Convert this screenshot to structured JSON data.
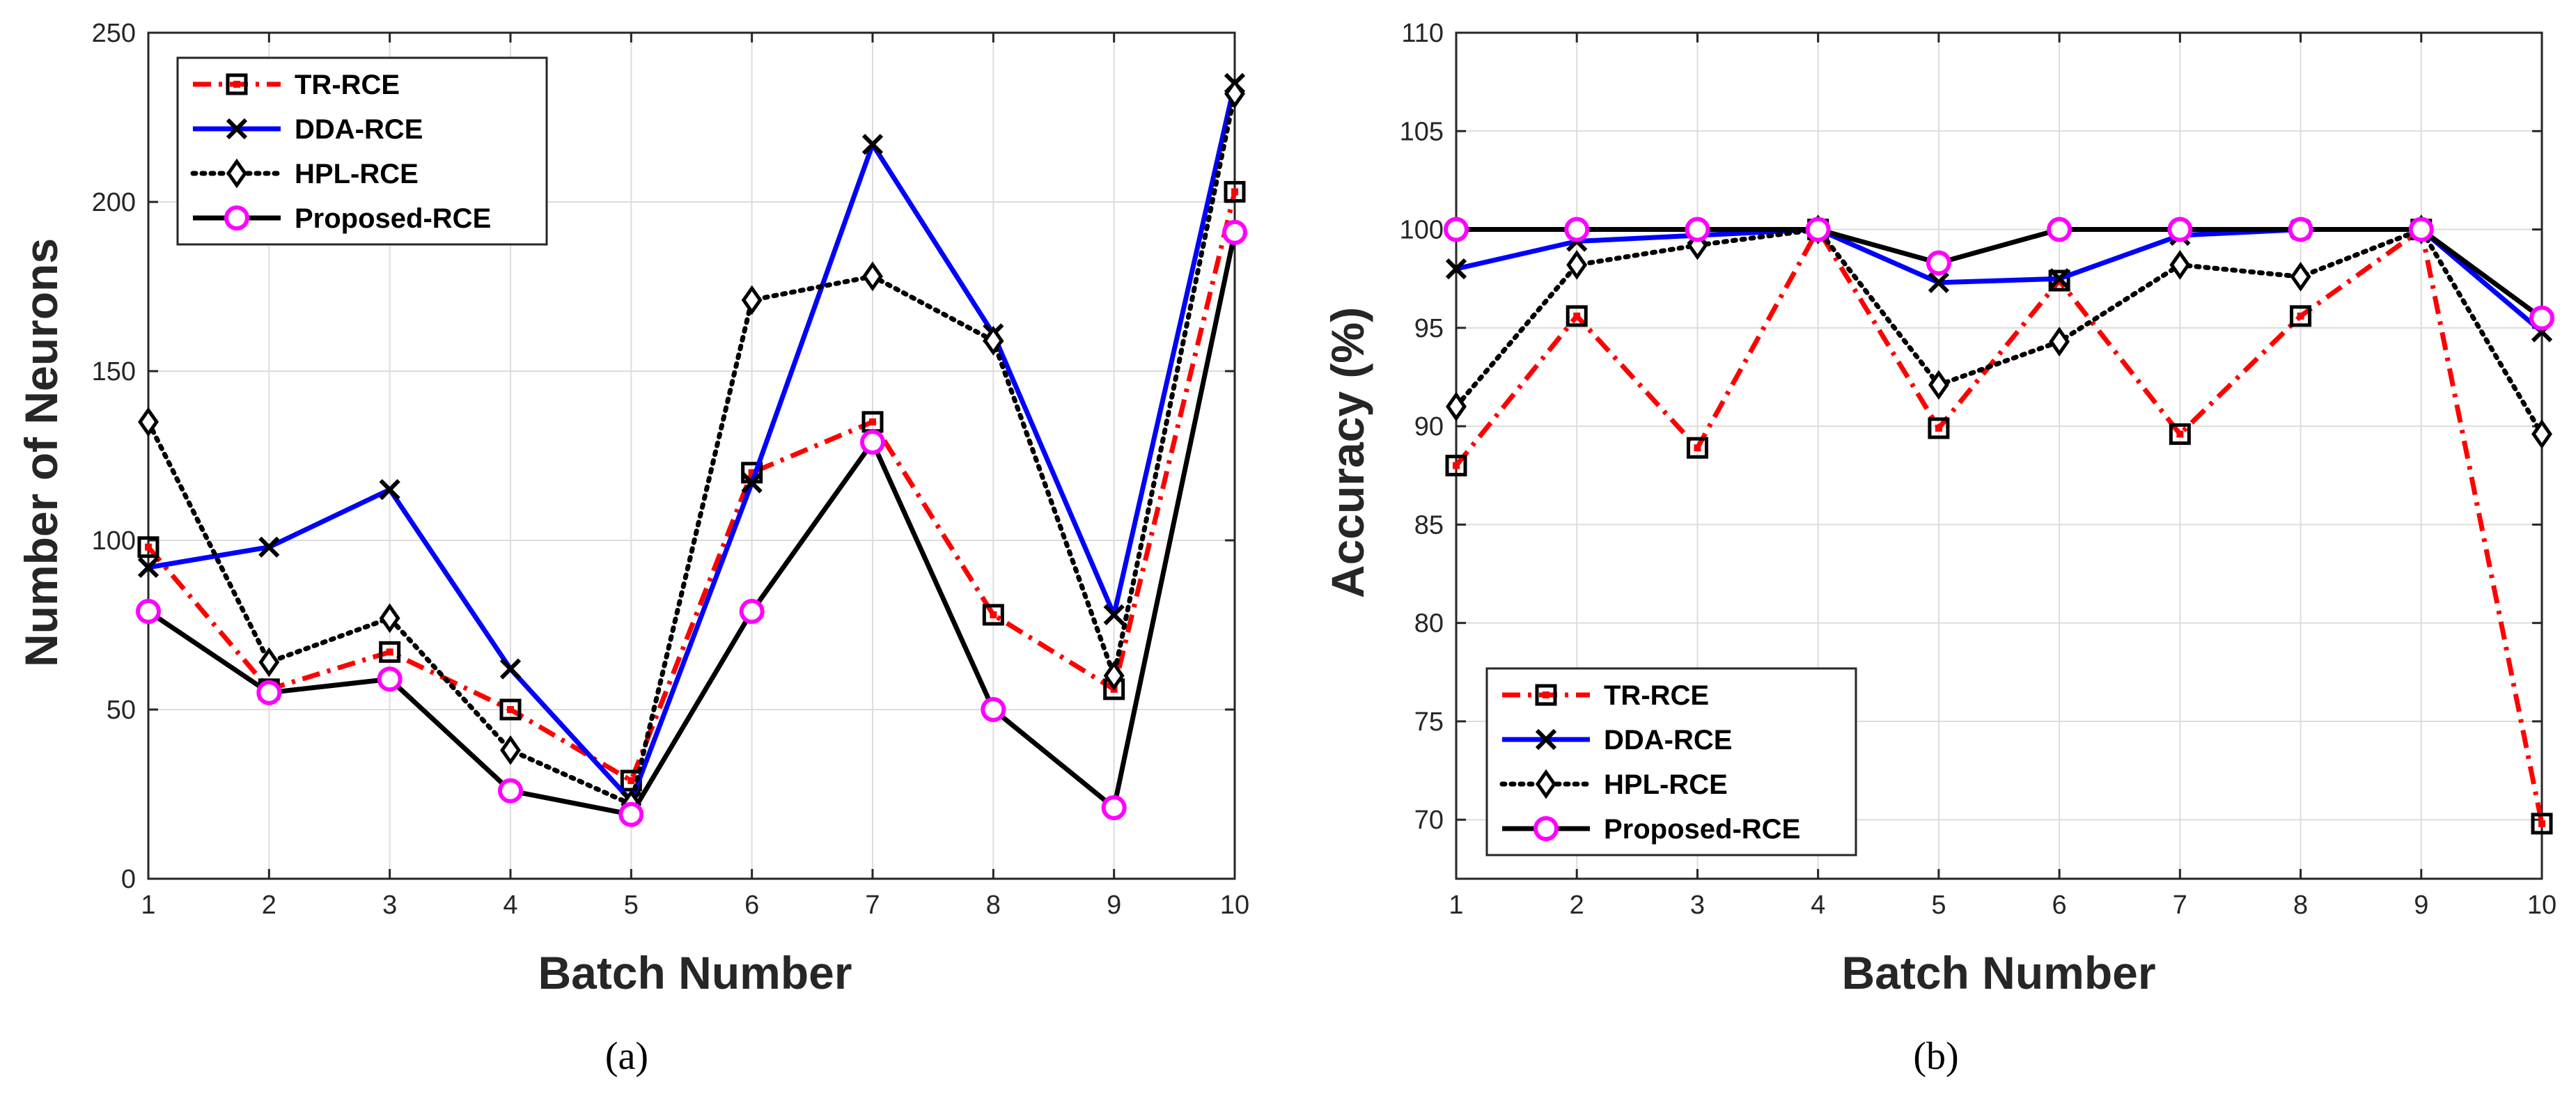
{
  "chart_data": [
    {
      "type": "line",
      "panel": "(a)",
      "xlabel": "Batch Number",
      "ylabel": "Number of Neurons",
      "xlim": [
        1,
        10
      ],
      "ylim": [
        0,
        250
      ],
      "xticks": [
        1,
        2,
        3,
        4,
        5,
        6,
        7,
        8,
        9,
        10
      ],
      "yticks": [
        0,
        50,
        100,
        150,
        200,
        250
      ],
      "grid": true,
      "legend_position": "top-left",
      "x": [
        1,
        2,
        3,
        4,
        5,
        6,
        7,
        8,
        9,
        10
      ],
      "series": [
        {
          "name": "TR-RCE",
          "color": "#ff0000",
          "line_style": "dash-dot",
          "marker": "square",
          "values": [
            98,
            56,
            67,
            50,
            29,
            120,
            135,
            78,
            56,
            203
          ]
        },
        {
          "name": "DDA-RCE",
          "color": "#0000ff",
          "line_style": "solid",
          "marker": "x",
          "values": [
            92,
            98,
            115,
            62,
            23,
            117,
            217,
            161,
            78,
            235
          ]
        },
        {
          "name": "HPL-RCE",
          "color": "#000000",
          "line_style": "dotted",
          "marker": "diamond",
          "values": [
            135,
            64,
            77,
            38,
            22,
            171,
            178,
            159,
            60,
            232
          ]
        },
        {
          "name": "Proposed-RCE",
          "color": "#000000",
          "line_style": "solid",
          "marker": "circle",
          "marker_color": "#ff00ff",
          "values": [
            79,
            55,
            59,
            26,
            19,
            79,
            129,
            50,
            21,
            191
          ]
        }
      ]
    },
    {
      "type": "line",
      "panel": "(b)",
      "xlabel": "Batch Number",
      "ylabel": "Accuracy (%)",
      "xlim": [
        1,
        10
      ],
      "ylim": [
        67,
        110
      ],
      "xticks": [
        1,
        2,
        3,
        4,
        5,
        6,
        7,
        8,
        9,
        10
      ],
      "yticks": [
        70,
        75,
        80,
        85,
        90,
        95,
        100,
        105,
        110
      ],
      "grid": true,
      "legend_position": "bottom-left",
      "x": [
        1,
        2,
        3,
        4,
        5,
        6,
        7,
        8,
        9,
        10
      ],
      "series": [
        {
          "name": "TR-RCE",
          "color": "#ff0000",
          "line_style": "dash-dot",
          "marker": "square",
          "values": [
            88.0,
            95.6,
            88.9,
            100.0,
            89.9,
            97.4,
            89.6,
            95.6,
            100.0,
            69.8
          ]
        },
        {
          "name": "DDA-RCE",
          "color": "#0000ff",
          "line_style": "solid",
          "marker": "x",
          "values": [
            98.0,
            99.4,
            99.7,
            100.0,
            97.3,
            97.5,
            99.7,
            100.0,
            100.0,
            94.8
          ]
        },
        {
          "name": "HPL-RCE",
          "color": "#000000",
          "line_style": "dotted",
          "marker": "diamond",
          "values": [
            91.0,
            98.2,
            99.2,
            100.0,
            92.1,
            94.3,
            98.2,
            97.6,
            100.0,
            89.6
          ]
        },
        {
          "name": "Proposed-RCE",
          "color": "#000000",
          "line_style": "solid",
          "marker": "circle",
          "marker_color": "#ff00ff",
          "values": [
            100.0,
            100.0,
            100.0,
            100.0,
            98.3,
            100.0,
            100.0,
            100.0,
            100.0,
            95.5
          ]
        }
      ]
    }
  ]
}
